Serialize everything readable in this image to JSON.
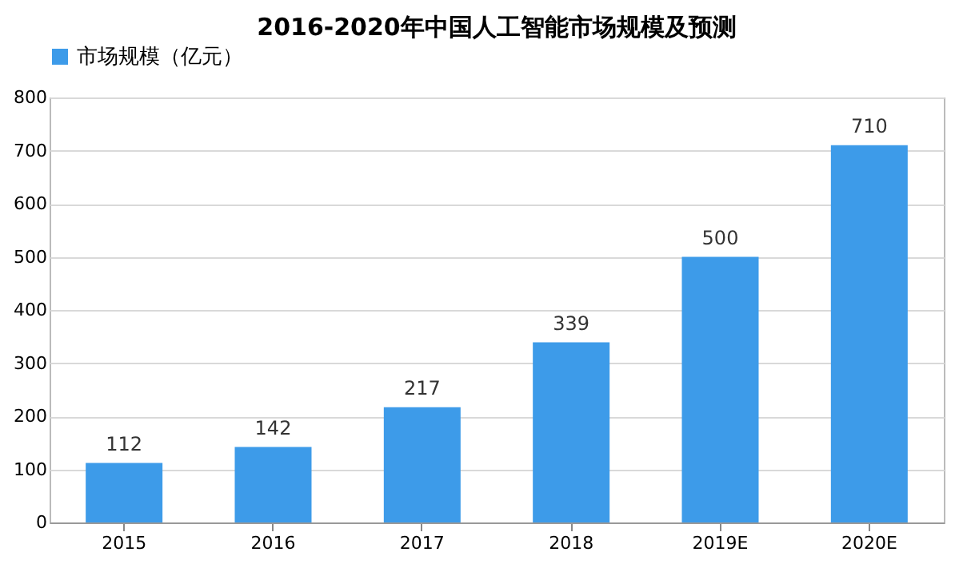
{
  "chart_data": {
    "type": "bar",
    "title": "2016-2020年中国人工智能市场规模及预测",
    "categories": [
      "2015",
      "2016",
      "2017",
      "2018",
      "2019E",
      "2020E"
    ],
    "series": [
      {
        "name": "市场规模（亿元）",
        "color": "#3d9be9",
        "values": [
          112,
          142,
          217,
          339,
          500,
          710
        ]
      }
    ],
    "ylim": [
      0,
      800
    ],
    "yticks": [
      0,
      100,
      200,
      300,
      400,
      500,
      600,
      700,
      800
    ],
    "grid": "y",
    "legend": "top",
    "data_labels": true
  }
}
